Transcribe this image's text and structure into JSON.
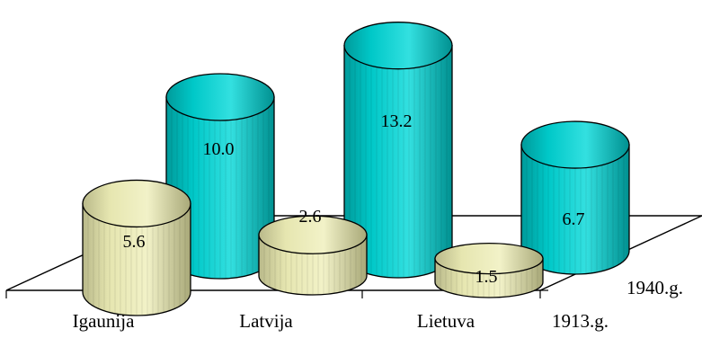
{
  "chart_data": {
    "type": "bar",
    "categories": [
      "Igaunija",
      "Latvija",
      "Lietuva"
    ],
    "series": [
      {
        "name": "1913.g.",
        "values": [
          5.6,
          2.6,
          1.5
        ],
        "color": "#e6e6b0"
      },
      {
        "name": "1940.g.",
        "values": [
          10.0,
          13.2,
          6.7
        ],
        "color": "#00cccc"
      }
    ],
    "data_labels": {
      "1913": [
        "5.6",
        "2.6",
        "1.5"
      ],
      "1940": [
        "10.0",
        "13.2",
        "6.7"
      ]
    },
    "title": "",
    "xlabel": "",
    "ylabel": "",
    "ylim": [
      0,
      14
    ],
    "style": "3d-cylinder",
    "grid": false,
    "legend": "none"
  }
}
